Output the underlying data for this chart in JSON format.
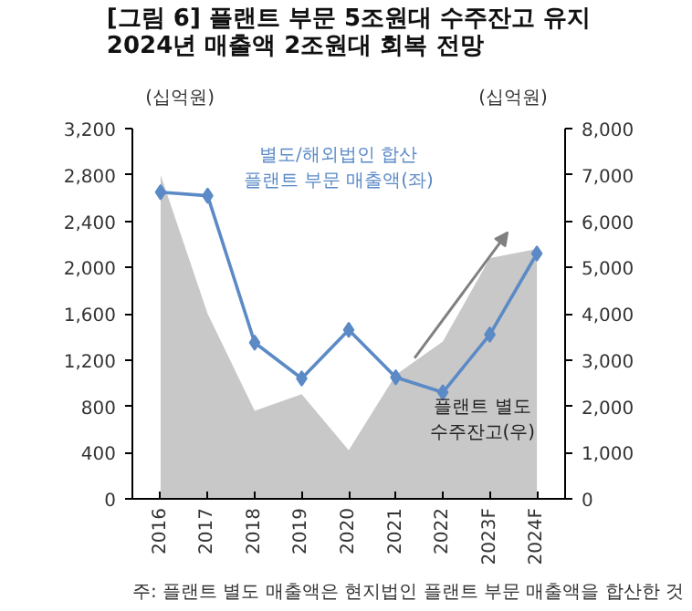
{
  "chart_data": {
    "type": "line",
    "title": "[그림 6] 플랜트 부문 5조원대 수주잔고 유지\n2024년 매출액 2조원대 회복 전망",
    "ylabel": "(십억원)",
    "y2label": "(십억원)",
    "categories": [
      "2016",
      "2017",
      "2018",
      "2019",
      "2020",
      "2021",
      "2022",
      "2023F",
      "2024F"
    ],
    "series": [
      {
        "name": "플랜트 별도\n수주잔고(우)",
        "type": "area",
        "axis": "y2",
        "color": "#c8c8c8",
        "values": [
          7000,
          4000,
          1900,
          2260,
          1050,
          2680,
          3400,
          5200,
          5400
        ]
      },
      {
        "name": "별도/해외법인 합산\n플랜트 부문 매출액(좌)",
        "color": "#5b8ac6",
        "marker": "diamond",
        "values": [
          2650,
          2620,
          1350,
          1040,
          1460,
          1050,
          920,
          1420,
          2120
        ]
      }
    ],
    "ylim": [
      0,
      3200
    ],
    "yticks": [
      0,
      {
        "value": 400,
        "label": "400"
      },
      {
        "value": 800,
        "label": "800"
      },
      {
        "value": 1200,
        "label": "1,200"
      },
      {
        "value": 1600,
        "label": "1,600"
      },
      {
        "value": 2000,
        "label": "2,000"
      },
      {
        "value": 2400,
        "label": "2,400"
      },
      {
        "value": 2800,
        "label": "2,800"
      },
      {
        "value": 3200,
        "label": "3,200"
      }
    ],
    "y2lim": [
      0,
      8000
    ],
    "y2ticks": [
      0,
      {
        "value": 1000,
        "label": "1,000"
      },
      {
        "value": 2000,
        "label": "2,000"
      },
      {
        "value": 3000,
        "label": "3,000"
      },
      {
        "value": 4000,
        "label": "4,000"
      },
      {
        "value": 5000,
        "label": "5,000"
      },
      {
        "value": 6000,
        "label": "6,000"
      },
      {
        "value": 7000,
        "label": "7,000"
      },
      {
        "value": 8000,
        "label": "8,000"
      }
    ],
    "grid": false,
    "annotations": [
      "주: 플랜트 별도 매출액은 현지법인 플랜트 부문 매출액을 합산한 것"
    ]
  }
}
